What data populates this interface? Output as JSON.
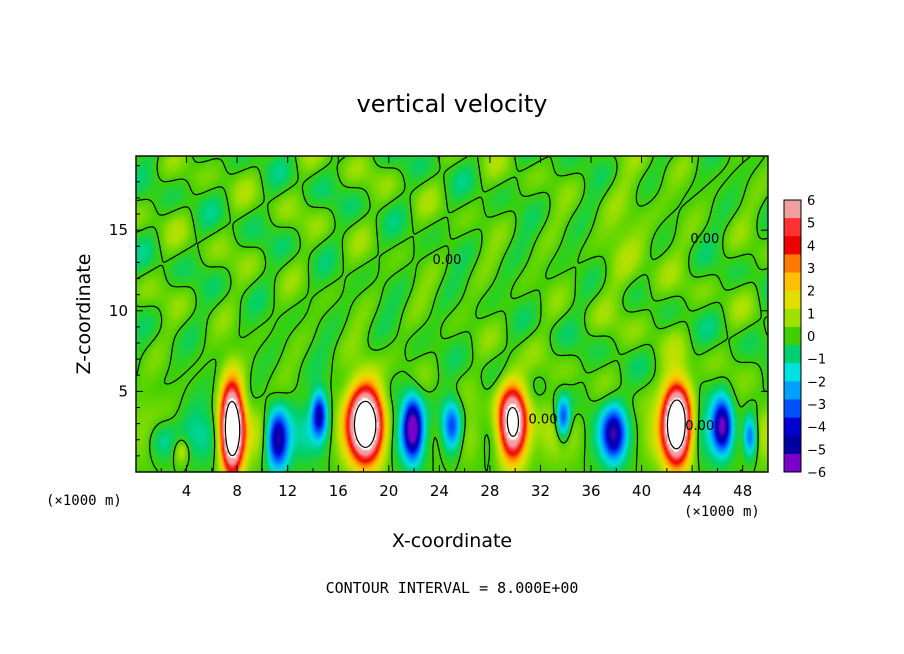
{
  "chart_data": {
    "type": "heatmap",
    "title": "vertical velocity",
    "xlabel": "X-coordinate",
    "ylabel": "Z-coordinate",
    "x_unit_label": "(×1000 m)",
    "x_unit_label_right": "(×1000 m)",
    "xlim": [
      0,
      50
    ],
    "ylim": [
      0,
      19.6
    ],
    "x_ticks": [
      4,
      8,
      12,
      16,
      20,
      24,
      28,
      32,
      36,
      40,
      44,
      48
    ],
    "y_ticks": [
      5,
      10,
      15
    ],
    "footer": "CONTOUR INTERVAL = 8.000E+00",
    "contour_labels": [
      {
        "text": "0.00",
        "x": 45.0,
        "z": 14.2
      },
      {
        "text": "0.00",
        "x": 24.6,
        "z": 12.9
      },
      {
        "text": "0.00",
        "x": 32.2,
        "z": 3.0
      },
      {
        "text": "0.00",
        "x": 44.6,
        "z": 2.6
      }
    ],
    "colorbar": {
      "min": -6,
      "max": 6,
      "labels": [
        "6",
        "5",
        "4",
        "3",
        "2",
        "1",
        "0",
        "−1",
        "−2",
        "−3",
        "−4",
        "−5",
        "−6"
      ],
      "levels": [
        "#f0a0a0",
        "#ff3030",
        "#ee0000",
        "#ff7a00",
        "#ffc000",
        "#e0e000",
        "#a0e000",
        "#40d000",
        "#00d070",
        "#00e0e0",
        "#00a0ff",
        "#0050ff",
        "#0000d0",
        "#0000a0",
        "#7a00cc"
      ]
    },
    "cells": [
      {
        "x": 7.6,
        "z": 2.7,
        "w": 0.85,
        "h": 2.6,
        "amp": 12
      },
      {
        "x": 11.2,
        "z": 2.0,
        "w": 0.85,
        "h": 1.8,
        "amp": -5.5
      },
      {
        "x": 14.5,
        "z": 3.6,
        "w": 0.6,
        "h": 1.4,
        "amp": -4.5
      },
      {
        "x": 18.2,
        "z": 3.0,
        "w": 1.3,
        "h": 2.3,
        "amp": 11
      },
      {
        "x": 21.9,
        "z": 2.7,
        "w": 0.75,
        "h": 1.9,
        "amp": -6
      },
      {
        "x": 25.0,
        "z": 2.8,
        "w": 0.8,
        "h": 1.6,
        "amp": -4.5
      },
      {
        "x": 29.8,
        "z": 3.0,
        "w": 1.1,
        "h": 2.2,
        "amp": 10.5
      },
      {
        "x": 33.8,
        "z": 3.3,
        "w": 0.55,
        "h": 1.3,
        "amp": -4
      },
      {
        "x": 37.8,
        "z": 2.3,
        "w": 0.9,
        "h": 1.6,
        "amp": -4.5
      },
      {
        "x": 42.8,
        "z": 3.0,
        "w": 1.05,
        "h": 2.4,
        "amp": 11.5
      },
      {
        "x": 46.4,
        "z": 2.9,
        "w": 0.75,
        "h": 1.6,
        "amp": -5.5
      },
      {
        "x": 48.6,
        "z": 2.2,
        "w": 0.55,
        "h": 1.3,
        "amp": -3.8
      },
      {
        "x": 2.0,
        "z": 2.0,
        "w": 1.2,
        "h": 1.3,
        "amp": -2
      },
      {
        "x": 3.6,
        "z": 1.3,
        "w": 0.6,
        "h": 0.8,
        "amp": 1.5
      }
    ]
  }
}
